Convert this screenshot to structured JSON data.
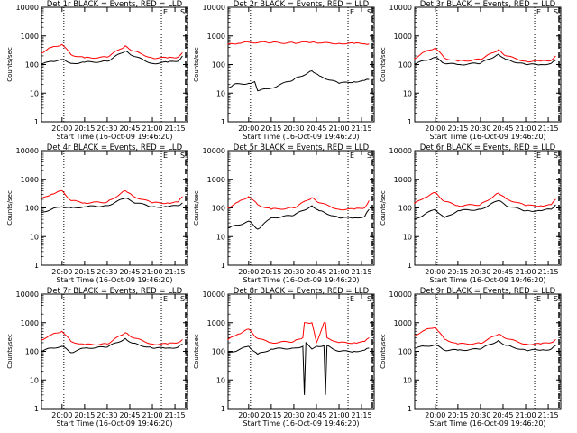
{
  "chart_data": [
    {
      "type": "line",
      "title": "Det 1r BLACK = Events, RED = LLD",
      "xlabel": "Start Time (16-Oct-09 19:46:20)",
      "ylabel": "Counts/sec",
      "x_tick_labels": [
        "20:00",
        "20:15",
        "20:30",
        "20:45",
        "21:00",
        "21:15"
      ],
      "y_tick_labels": [
        "1",
        "10",
        "100",
        "1000",
        "10000"
      ],
      "ylim": [
        1,
        10000
      ],
      "y_scale": "log",
      "series": [
        {
          "color": "#000000",
          "x": [
            "19:46",
            "19:53",
            "20:00",
            "20:04",
            "20:06",
            "20:15",
            "20:30",
            "20:42",
            "20:47",
            "21:00",
            "21:10",
            "21:17",
            "21:20"
          ],
          "values": [
            100,
            130,
            150,
            120,
            110,
            120,
            130,
            300,
            200,
            110,
            120,
            130,
            200
          ]
        },
        {
          "color": "#ff0000",
          "x": [
            "19:46",
            "19:53",
            "20:00",
            "20:06",
            "20:15",
            "20:30",
            "20:42",
            "20:47",
            "21:00",
            "21:10",
            "21:17",
            "21:20"
          ],
          "values": [
            250,
            400,
            500,
            220,
            170,
            180,
            450,
            300,
            170,
            170,
            180,
            260
          ]
        }
      ],
      "markers": [
        "E",
        "S"
      ]
    },
    {
      "type": "line",
      "title": "Det 2r BLACK = Events, RED = LLD",
      "xlabel": "Start Time (16-Oct-09 19:46:20)",
      "ylabel": "Counts/sec",
      "x_tick_labels": [
        "20:00",
        "20:15",
        "20:30",
        "20:45",
        "21:00",
        "21:15"
      ],
      "y_tick_labels": [
        "1",
        "10",
        "100",
        "1000",
        "10000"
      ],
      "ylim": [
        1,
        10000
      ],
      "y_scale": "log",
      "series": [
        {
          "color": "#000000",
          "x": [
            "19:46",
            "19:50",
            "20:00",
            "20:04",
            "20:06",
            "20:15",
            "20:30",
            "20:42",
            "20:47",
            "21:00",
            "21:10",
            "21:17",
            "21:20"
          ],
          "values": [
            15,
            20,
            22,
            25,
            12,
            15,
            30,
            60,
            40,
            22,
            25,
            28,
            30
          ]
        },
        {
          "color": "#ff0000",
          "x": [
            "19:46",
            "19:53",
            "20:00",
            "20:15",
            "20:30",
            "20:42",
            "20:47",
            "21:00",
            "21:10",
            "21:17",
            "21:20"
          ],
          "values": [
            500,
            550,
            600,
            580,
            570,
            600,
            560,
            550,
            540,
            530,
            520
          ]
        }
      ],
      "markers": [
        "E",
        "S"
      ]
    },
    {
      "type": "line",
      "title": "Det 3r BLACK = Events, RED = LLD",
      "xlabel": "Start Time (16-Oct-09 19:46:20)",
      "ylabel": "Counts/sec",
      "x_tick_labels": [
        "20:00",
        "20:15",
        "20:30",
        "20:45",
        "21:00",
        "21:15"
      ],
      "y_tick_labels": [
        "1",
        "10",
        "100",
        "1000",
        "10000"
      ],
      "ylim": [
        1,
        10000
      ],
      "y_scale": "log",
      "series": [
        {
          "color": "#000000",
          "x": [
            "19:46",
            "19:53",
            "20:00",
            "20:06",
            "20:15",
            "20:30",
            "20:42",
            "20:47",
            "21:00",
            "21:10",
            "21:17",
            "21:20"
          ],
          "values": [
            100,
            140,
            180,
            110,
            100,
            110,
            230,
            150,
            100,
            100,
            110,
            140
          ]
        },
        {
          "color": "#ff0000",
          "x": [
            "19:46",
            "19:53",
            "20:00",
            "20:06",
            "20:15",
            "20:30",
            "20:42",
            "20:47",
            "21:00",
            "21:10",
            "21:17",
            "21:20"
          ],
          "values": [
            160,
            280,
            380,
            170,
            130,
            150,
            330,
            200,
            130,
            130,
            140,
            200
          ]
        }
      ],
      "markers": [
        "E",
        "S"
      ]
    },
    {
      "type": "line",
      "title": "Det 4r BLACK = Events, RED = LLD",
      "xlabel": "Start Time (16-Oct-09 19:46:20)",
      "ylabel": "Counts/sec",
      "x_tick_labels": [
        "20:00",
        "20:15",
        "20:30",
        "20:45",
        "21:00",
        "21:15"
      ],
      "y_tick_labels": [
        "1",
        "10",
        "100",
        "1000",
        "10000"
      ],
      "ylim": [
        1,
        10000
      ],
      "y_scale": "log",
      "series": [
        {
          "color": "#000000",
          "x": [
            "19:46",
            "19:53",
            "20:00",
            "20:06",
            "20:15",
            "20:30",
            "20:42",
            "20:47",
            "21:00",
            "21:10",
            "21:17",
            "21:20"
          ],
          "values": [
            70,
            90,
            110,
            100,
            110,
            120,
            220,
            160,
            110,
            110,
            120,
            150
          ]
        },
        {
          "color": "#ff0000",
          "x": [
            "19:46",
            "19:53",
            "20:00",
            "20:06",
            "20:15",
            "20:30",
            "20:42",
            "20:47",
            "21:00",
            "21:10",
            "21:17",
            "21:20"
          ],
          "values": [
            200,
            300,
            400,
            180,
            150,
            160,
            400,
            260,
            150,
            150,
            160,
            250
          ]
        }
      ],
      "markers": [
        "E",
        "S"
      ]
    },
    {
      "type": "line",
      "title": "Det 5r BLACK = Events, RED = LLD",
      "xlabel": "Start Time (16-Oct-09 19:46:20)",
      "ylabel": "Counts/sec",
      "x_tick_labels": [
        "20:00",
        "20:15",
        "20:30",
        "20:45",
        "21:00",
        "21:15"
      ],
      "y_tick_labels": [
        "1",
        "10",
        "100",
        "1000",
        "10000"
      ],
      "ylim": [
        1,
        10000
      ],
      "y_scale": "log",
      "series": [
        {
          "color": "#000000",
          "x": [
            "19:46",
            "19:53",
            "20:00",
            "20:06",
            "20:15",
            "20:30",
            "20:42",
            "20:47",
            "21:00",
            "21:10",
            "21:17",
            "21:20"
          ],
          "values": [
            20,
            25,
            35,
            18,
            45,
            55,
            120,
            80,
            45,
            45,
            50,
            90
          ]
        },
        {
          "color": "#ff0000",
          "x": [
            "19:46",
            "19:53",
            "20:00",
            "20:06",
            "20:15",
            "20:30",
            "20:42",
            "20:47",
            "21:00",
            "21:10",
            "21:17",
            "21:20"
          ],
          "values": [
            100,
            160,
            250,
            130,
            90,
            100,
            230,
            150,
            90,
            90,
            100,
            180
          ]
        }
      ],
      "markers": [
        "E",
        "S"
      ]
    },
    {
      "type": "line",
      "title": "Det 6r BLACK = Events, RED = LLD",
      "xlabel": "Start Time (16-Oct-09 19:46:20)",
      "ylabel": "Counts/sec",
      "x_tick_labels": [
        "20:00",
        "20:15",
        "20:30",
        "20:45",
        "21:00",
        "21:15"
      ],
      "y_tick_labels": [
        "1",
        "10",
        "100",
        "1000",
        "10000"
      ],
      "ylim": [
        1,
        10000
      ],
      "y_scale": "log",
      "series": [
        {
          "color": "#000000",
          "x": [
            "19:46",
            "19:53",
            "20:00",
            "20:06",
            "20:15",
            "20:30",
            "20:42",
            "20:47",
            "21:00",
            "21:10",
            "21:17",
            "21:20"
          ],
          "values": [
            40,
            60,
            90,
            45,
            80,
            90,
            180,
            120,
            80,
            80,
            90,
            130
          ]
        },
        {
          "color": "#ff0000",
          "x": [
            "19:46",
            "19:53",
            "20:00",
            "20:06",
            "20:15",
            "20:30",
            "20:42",
            "20:47",
            "21:00",
            "21:10",
            "21:17",
            "21:20"
          ],
          "values": [
            140,
            230,
            350,
            170,
            120,
            130,
            330,
            210,
            120,
            120,
            130,
            200
          ]
        }
      ],
      "markers": [
        "E",
        "S"
      ]
    },
    {
      "type": "line",
      "title": "Det 7r BLACK = Events, RED = LLD",
      "xlabel": "Start Time (16-Oct-09 19:46:20)",
      "ylabel": "Counts/sec",
      "x_tick_labels": [
        "20:00",
        "20:15",
        "20:30",
        "20:45",
        "21:00",
        "21:15"
      ],
      "y_tick_labels": [
        "1",
        "10",
        "100",
        "1000",
        "10000"
      ],
      "ylim": [
        1,
        10000
      ],
      "y_scale": "log",
      "series": [
        {
          "color": "#000000",
          "x": [
            "19:46",
            "19:53",
            "20:00",
            "20:06",
            "20:15",
            "20:30",
            "20:42",
            "20:47",
            "21:00",
            "21:10",
            "21:17",
            "21:20"
          ],
          "values": [
            100,
            130,
            150,
            90,
            130,
            140,
            280,
            190,
            130,
            130,
            140,
            180
          ]
        },
        {
          "color": "#ff0000",
          "x": [
            "19:46",
            "19:53",
            "20:00",
            "20:06",
            "20:15",
            "20:30",
            "20:42",
            "20:47",
            "21:00",
            "21:10",
            "21:17",
            "21:20"
          ],
          "values": [
            250,
            380,
            500,
            220,
            170,
            180,
            450,
            300,
            180,
            180,
            200,
            260
          ]
        }
      ],
      "markers": [
        "E",
        "S"
      ]
    },
    {
      "type": "line",
      "title": "Det 8r BLACK = Events, RED = LLD",
      "xlabel": "Start Time (16-Oct-09 19:46:20)",
      "ylabel": "Counts/sec",
      "x_tick_labels": [
        "20:00",
        "20:15",
        "20:30",
        "20:45",
        "21:00",
        "21:15"
      ],
      "y_tick_labels": [
        "1",
        "10",
        "100",
        "1000",
        "10000"
      ],
      "ylim": [
        1,
        10000
      ],
      "y_scale": "log",
      "series": [
        {
          "color": "#000000",
          "x": [
            "19:46",
            "19:53",
            "20:00",
            "20:06",
            "20:15",
            "20:30",
            "20:36",
            "20:37",
            "20:38",
            "20:42",
            "20:45",
            "20:50",
            "20:51",
            "20:52",
            "21:00",
            "21:10",
            "21:17",
            "21:20"
          ],
          "values": [
            90,
            110,
            150,
            80,
            120,
            130,
            150,
            3,
            200,
            120,
            150,
            160,
            3,
            160,
            100,
            100,
            110,
            130
          ]
        },
        {
          "color": "#ff0000",
          "x": [
            "19:46",
            "19:53",
            "20:00",
            "20:06",
            "20:15",
            "20:30",
            "20:36",
            "20:37",
            "20:42",
            "20:45",
            "20:50",
            "20:51",
            "20:52",
            "21:00",
            "21:10",
            "21:17",
            "21:20"
          ],
          "values": [
            250,
            400,
            600,
            280,
            200,
            220,
            300,
            1000,
            1000,
            200,
            1000,
            1000,
            300,
            200,
            200,
            220,
            300
          ]
        }
      ],
      "markers": [
        "E",
        "S"
      ]
    },
    {
      "type": "line",
      "title": "Det 9r BLACK = Events, RED = LLD",
      "xlabel": "Start Time (16-Oct-09 19:46:20)",
      "ylabel": "Counts/sec",
      "x_tick_labels": [
        "20:00",
        "20:15",
        "20:30",
        "20:45",
        "21:00",
        "21:15"
      ],
      "y_tick_labels": [
        "1",
        "10",
        "100",
        "1000",
        "10000"
      ],
      "ylim": [
        1,
        10000
      ],
      "y_scale": "log",
      "series": [
        {
          "color": "#000000",
          "x": [
            "19:46",
            "19:53",
            "20:00",
            "20:06",
            "20:15",
            "20:30",
            "20:42",
            "20:47",
            "21:00",
            "21:10",
            "21:17",
            "21:20"
          ],
          "values": [
            130,
            150,
            170,
            110,
            110,
            120,
            240,
            160,
            110,
            110,
            120,
            160
          ]
        },
        {
          "color": "#ff0000",
          "x": [
            "19:46",
            "19:53",
            "20:00",
            "20:06",
            "20:15",
            "20:30",
            "20:42",
            "20:47",
            "21:00",
            "21:10",
            "21:17",
            "21:20"
          ],
          "values": [
            350,
            550,
            700,
            270,
            180,
            190,
            400,
            280,
            180,
            180,
            200,
            260
          ]
        }
      ],
      "markers": [
        "E",
        "S"
      ]
    }
  ]
}
